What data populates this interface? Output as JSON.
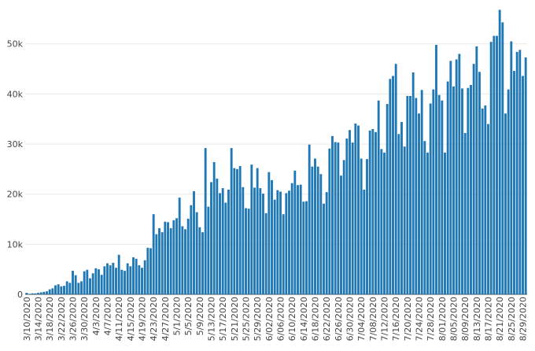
{
  "chart_data": {
    "type": "bar",
    "title": "",
    "xlabel": "",
    "ylabel": "",
    "x_start": "2020-03-10",
    "x_end": "2020-08-31",
    "tick_step_days": 4,
    "ylim": [
      0,
      57500
    ],
    "ytick_values": [
      0,
      10000,
      20000,
      30000,
      40000,
      50000
    ],
    "ytick_labels": [
      "0",
      "10k",
      "20k",
      "30k",
      "40k",
      "50k"
    ],
    "xtick_labels": [
      "3/10/2020",
      "3/14/2020",
      "3/18/2020",
      "3/22/2020",
      "3/26/2020",
      "3/30/2020",
      "4/3/2020",
      "4/7/2020",
      "4/11/2020",
      "4/15/2020",
      "4/19/2020",
      "4/23/2020",
      "4/27/2020",
      "5/1/2020",
      "5/5/2020",
      "5/9/2020",
      "5/13/2020",
      "5/17/2020",
      "5/21/2020",
      "5/25/2020",
      "5/29/2020",
      "6/02/2020",
      "6/06/2020",
      "6/10/2020",
      "6/14/2020",
      "6/18/2020",
      "6/22/2020",
      "6/26/2020",
      "6/30/2020",
      "7/04/2020",
      "7/08/2020",
      "7/12/2020",
      "7/16/2020",
      "7/20/2020",
      "7/24/2020",
      "7/28/2020",
      "8/01/2020",
      "8/05/2020",
      "8/09/2020",
      "8/13/2020",
      "8/17/2020",
      "8/21/2020",
      "8/25/2020",
      "8/29/2020"
    ],
    "bar_color": "#1f77b4",
    "grid": true,
    "values": [
      300,
      100,
      200,
      200,
      300,
      400,
      500,
      600,
      1000,
      1200,
      1800,
      2000,
      1600,
      1700,
      2600,
      2300,
      4700,
      3800,
      2300,
      2600,
      4600,
      4900,
      3200,
      4200,
      5200,
      5000,
      3900,
      5600,
      6200,
      5800,
      6300,
      5300,
      7900,
      4900,
      4700,
      6200,
      5600,
      7400,
      7100,
      5800,
      5300,
      6800,
      9300,
      9200,
      16000,
      12000,
      13200,
      12400,
      14500,
      14400,
      13200,
      14800,
      15200,
      19300,
      13600,
      13000,
      15100,
      17800,
      20600,
      16400,
      13400,
      12400,
      29200,
      17500,
      22400,
      26400,
      23100,
      20200,
      21200,
      18300,
      20900,
      29200,
      25200,
      25000,
      25600,
      21400,
      17200,
      17100,
      25900,
      21300,
      25200,
      21200,
      20100,
      16200,
      24400,
      22800,
      18900,
      20800,
      20500,
      16000,
      20200,
      20700,
      22200,
      24700,
      21800,
      21900,
      18500,
      18600,
      29900,
      25500,
      27100,
      25500,
      24000,
      18100,
      20400,
      29100,
      31600,
      30400,
      30300,
      23700,
      26800,
      31100,
      32800,
      30300,
      34100,
      33700,
      27100,
      20900,
      27000,
      32700,
      33000,
      32400,
      38700,
      29000,
      28300,
      38000,
      43000,
      43600,
      46000,
      32000,
      34400,
      29500,
      39600,
      39600,
      44300,
      39200,
      36100,
      40800,
      30600,
      28300,
      38100,
      40900,
      49800,
      39800,
      38700,
      28300,
      42500,
      46600,
      41500,
      46900,
      48000,
      41100,
      32200,
      41200,
      41800,
      46000,
      49500,
      44400,
      37100,
      37700,
      34000,
      50400,
      51600,
      51600,
      56800,
      54300,
      36100,
      40900,
      50500,
      44600,
      48400,
      48800,
      43600,
      47300
    ]
  }
}
